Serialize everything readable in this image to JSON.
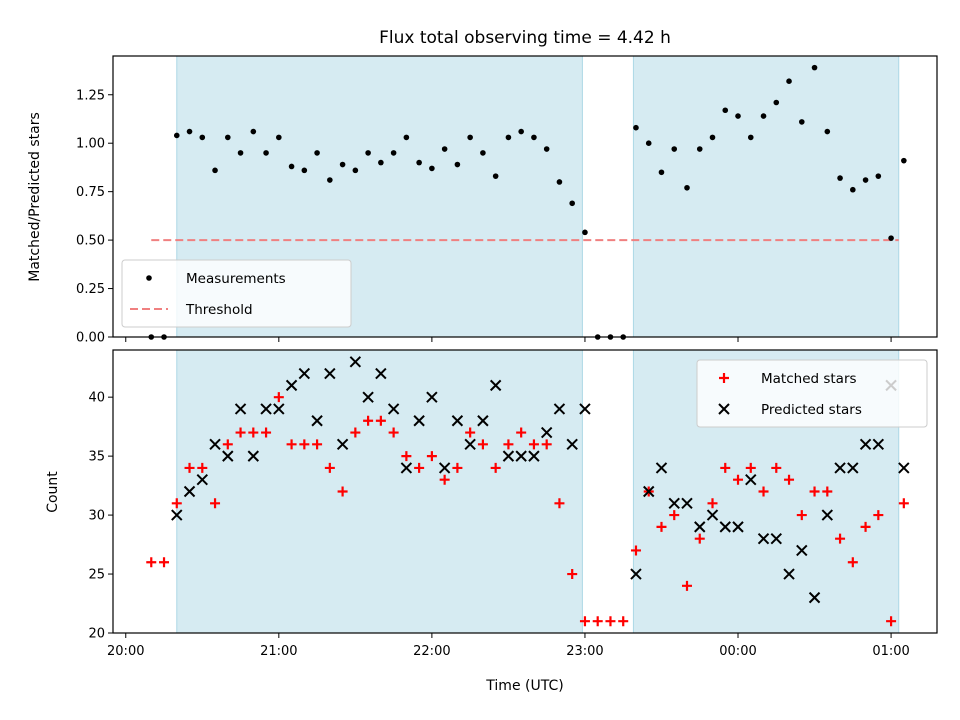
{
  "chart_data": [
    {
      "type": "scatter",
      "title": "Flux total observing time = 4.42 h",
      "xlabel": "",
      "ylabel": "Matched/Predicted stars",
      "ylim": [
        0,
        1.45
      ],
      "yticks": [
        "0.00",
        "0.25",
        "0.50",
        "0.75",
        "1.00",
        "1.25"
      ],
      "ytick_values": [
        0,
        0.25,
        0.5,
        0.75,
        1.0,
        1.25
      ],
      "xlim": [
        "19:55",
        "01:18"
      ],
      "x_tick_values": [
        "20:00",
        "21:00",
        "22:00",
        "23:00",
        "00:00",
        "01:00"
      ],
      "x_tick_labels_shown": false,
      "shaded_intervals": [
        [
          "20:20",
          "22:59"
        ],
        [
          "23:19",
          "01:03"
        ]
      ],
      "legend": {
        "position": "lower left",
        "entries": [
          "Measurements",
          "Threshold"
        ]
      },
      "threshold": {
        "name": "Threshold",
        "value": 0.5,
        "x_range": [
          "20:10",
          "01:03"
        ],
        "color": "#f08080"
      },
      "series": [
        {
          "name": "Measurements",
          "color": "#000000",
          "marker": "dot",
          "points": [
            [
              "20:10",
              0.0
            ],
            [
              "20:15",
              0.0
            ],
            [
              "20:20",
              1.04
            ],
            [
              "20:25",
              1.06
            ],
            [
              "20:30",
              1.03
            ],
            [
              "20:35",
              0.86
            ],
            [
              "20:40",
              1.03
            ],
            [
              "20:45",
              0.95
            ],
            [
              "20:50",
              1.06
            ],
            [
              "20:55",
              0.95
            ],
            [
              "21:00",
              1.03
            ],
            [
              "21:05",
              0.88
            ],
            [
              "21:10",
              0.86
            ],
            [
              "21:15",
              0.95
            ],
            [
              "21:20",
              0.81
            ],
            [
              "21:25",
              0.89
            ],
            [
              "21:30",
              0.86
            ],
            [
              "21:35",
              0.95
            ],
            [
              "21:40",
              0.9
            ],
            [
              "21:45",
              0.95
            ],
            [
              "21:50",
              1.03
            ],
            [
              "21:55",
              0.9
            ],
            [
              "22:00",
              0.87
            ],
            [
              "22:05",
              0.97
            ],
            [
              "22:10",
              0.89
            ],
            [
              "22:15",
              1.03
            ],
            [
              "22:20",
              0.95
            ],
            [
              "22:25",
              0.83
            ],
            [
              "22:30",
              1.03
            ],
            [
              "22:35",
              1.06
            ],
            [
              "22:40",
              1.03
            ],
            [
              "22:45",
              0.97
            ],
            [
              "22:50",
              0.8
            ],
            [
              "22:55",
              0.69
            ],
            [
              "23:00",
              0.54
            ],
            [
              "23:05",
              0.0
            ],
            [
              "23:10",
              0.0
            ],
            [
              "23:15",
              0.0
            ],
            [
              "23:20",
              1.08
            ],
            [
              "23:25",
              1.0
            ],
            [
              "23:30",
              0.85
            ],
            [
              "23:35",
              0.97
            ],
            [
              "23:40",
              0.77
            ],
            [
              "23:45",
              0.97
            ],
            [
              "23:50",
              1.03
            ],
            [
              "23:55",
              1.17
            ],
            [
              "00:00",
              1.14
            ],
            [
              "00:05",
              1.03
            ],
            [
              "00:10",
              1.14
            ],
            [
              "00:15",
              1.21
            ],
            [
              "00:20",
              1.32
            ],
            [
              "00:25",
              1.11
            ],
            [
              "00:30",
              1.39
            ],
            [
              "00:35",
              1.06
            ],
            [
              "00:40",
              0.82
            ],
            [
              "00:45",
              0.76
            ],
            [
              "00:50",
              0.81
            ],
            [
              "00:55",
              0.83
            ],
            [
              "01:00",
              0.51
            ],
            [
              "01:05",
              0.91
            ]
          ]
        }
      ]
    },
    {
      "type": "scatter",
      "title": "",
      "xlabel": "Time (UTC)",
      "ylabel": "Count",
      "ylim": [
        20,
        44
      ],
      "yticks": [
        "20",
        "25",
        "30",
        "35",
        "40"
      ],
      "ytick_values": [
        20,
        25,
        30,
        35,
        40
      ],
      "xlim": [
        "19:55",
        "01:18"
      ],
      "x_tick_values": [
        "20:00",
        "21:00",
        "22:00",
        "23:00",
        "00:00",
        "01:00"
      ],
      "x_tick_labels": [
        "20:00",
        "21:00",
        "22:00",
        "23:00",
        "00:00",
        "01:00"
      ],
      "shaded_intervals": [
        [
          "20:20",
          "22:59"
        ],
        [
          "23:19",
          "01:03"
        ]
      ],
      "legend": {
        "position": "upper right",
        "entries": [
          "Matched stars",
          "Predicted stars"
        ]
      },
      "series": [
        {
          "name": "Matched stars",
          "color": "#ff0000",
          "marker": "plus",
          "points": [
            [
              "20:10",
              26
            ],
            [
              "20:15",
              26
            ],
            [
              "20:20",
              31
            ],
            [
              "20:25",
              34
            ],
            [
              "20:30",
              34
            ],
            [
              "20:35",
              31
            ],
            [
              "20:40",
              36
            ],
            [
              "20:45",
              37
            ],
            [
              "20:50",
              37
            ],
            [
              "20:55",
              37
            ],
            [
              "21:00",
              40
            ],
            [
              "21:05",
              36
            ],
            [
              "21:10",
              36
            ],
            [
              "21:15",
              36
            ],
            [
              "21:20",
              34
            ],
            [
              "21:25",
              32
            ],
            [
              "21:30",
              37
            ],
            [
              "21:35",
              38
            ],
            [
              "21:40",
              38
            ],
            [
              "21:45",
              37
            ],
            [
              "21:50",
              35
            ],
            [
              "21:55",
              34
            ],
            [
              "22:00",
              35
            ],
            [
              "22:05",
              33
            ],
            [
              "22:10",
              34
            ],
            [
              "22:15",
              37
            ],
            [
              "22:20",
              36
            ],
            [
              "22:25",
              34
            ],
            [
              "22:30",
              36
            ],
            [
              "22:35",
              37
            ],
            [
              "22:40",
              36
            ],
            [
              "22:45",
              36
            ],
            [
              "22:50",
              31
            ],
            [
              "22:55",
              25
            ],
            [
              "23:00",
              21
            ],
            [
              "23:05",
              21
            ],
            [
              "23:10",
              21
            ],
            [
              "23:15",
              21
            ],
            [
              "23:20",
              27
            ],
            [
              "23:25",
              32
            ],
            [
              "23:30",
              29
            ],
            [
              "23:35",
              30
            ],
            [
              "23:40",
              24
            ],
            [
              "23:45",
              28
            ],
            [
              "23:50",
              31
            ],
            [
              "23:55",
              34
            ],
            [
              "00:00",
              33
            ],
            [
              "00:05",
              34
            ],
            [
              "00:10",
              32
            ],
            [
              "00:15",
              34
            ],
            [
              "00:20",
              33
            ],
            [
              "00:25",
              30
            ],
            [
              "00:30",
              32
            ],
            [
              "00:35",
              32
            ],
            [
              "00:40",
              28
            ],
            [
              "00:45",
              26
            ],
            [
              "00:50",
              29
            ],
            [
              "00:55",
              30
            ],
            [
              "01:00",
              21
            ],
            [
              "01:05",
              31
            ]
          ]
        },
        {
          "name": "Predicted stars",
          "color": "#000000",
          "marker": "x",
          "points": [
            [
              "20:20",
              30
            ],
            [
              "20:25",
              32
            ],
            [
              "20:30",
              33
            ],
            [
              "20:35",
              36
            ],
            [
              "20:40",
              35
            ],
            [
              "20:45",
              39
            ],
            [
              "20:50",
              35
            ],
            [
              "20:55",
              39
            ],
            [
              "21:00",
              39
            ],
            [
              "21:05",
              41
            ],
            [
              "21:10",
              42
            ],
            [
              "21:15",
              38
            ],
            [
              "21:20",
              42
            ],
            [
              "21:25",
              36
            ],
            [
              "21:30",
              43
            ],
            [
              "21:35",
              40
            ],
            [
              "21:40",
              42
            ],
            [
              "21:45",
              39
            ],
            [
              "21:50",
              34
            ],
            [
              "21:55",
              38
            ],
            [
              "22:00",
              40
            ],
            [
              "22:05",
              34
            ],
            [
              "22:10",
              38
            ],
            [
              "22:15",
              36
            ],
            [
              "22:20",
              38
            ],
            [
              "22:25",
              41
            ],
            [
              "22:30",
              35
            ],
            [
              "22:35",
              35
            ],
            [
              "22:40",
              35
            ],
            [
              "22:45",
              37
            ],
            [
              "22:50",
              39
            ],
            [
              "22:55",
              36
            ],
            [
              "23:00",
              39
            ],
            [
              "23:20",
              25
            ],
            [
              "23:25",
              32
            ],
            [
              "23:30",
              34
            ],
            [
              "23:35",
              31
            ],
            [
              "23:40",
              31
            ],
            [
              "23:45",
              29
            ],
            [
              "23:50",
              30
            ],
            [
              "23:55",
              29
            ],
            [
              "00:00",
              29
            ],
            [
              "00:05",
              33
            ],
            [
              "00:10",
              28
            ],
            [
              "00:15",
              28
            ],
            [
              "00:20",
              25
            ],
            [
              "00:25",
              27
            ],
            [
              "00:30",
              23
            ],
            [
              "00:35",
              30
            ],
            [
              "00:40",
              34
            ],
            [
              "00:45",
              34
            ],
            [
              "00:50",
              36
            ],
            [
              "00:55",
              36
            ],
            [
              "01:00",
              41
            ],
            [
              "01:05",
              34
            ]
          ]
        }
      ]
    }
  ]
}
